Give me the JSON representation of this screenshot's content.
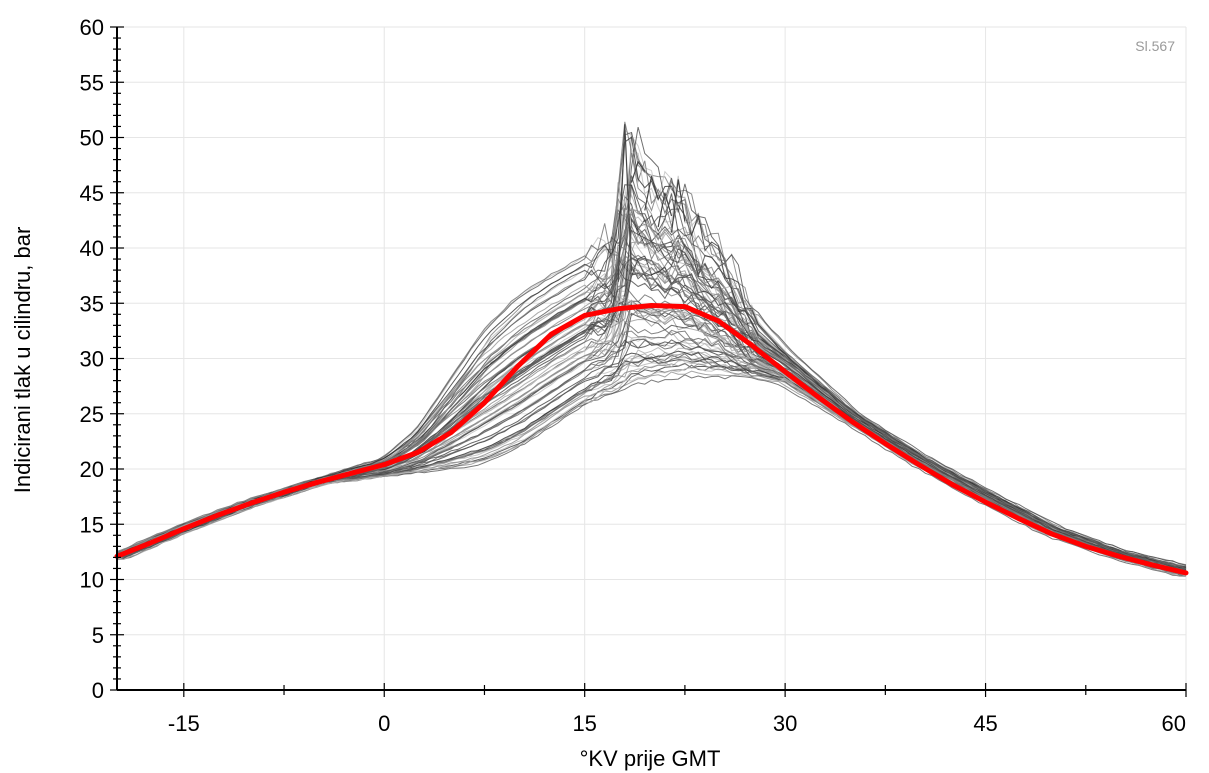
{
  "chart_data": {
    "type": "line",
    "title": "",
    "annotation": "Sl.567",
    "xlabel": "°KV prije GMT",
    "ylabel": "Indicirani tlak u cilindru, bar",
    "xlim": [
      -20,
      60
    ],
    "ylim": [
      0,
      60
    ],
    "x_ticks": [
      -15,
      0,
      15,
      30,
      45,
      60
    ],
    "y_ticks": [
      0,
      5,
      10,
      15,
      20,
      25,
      30,
      35,
      40,
      45,
      50,
      55,
      60
    ],
    "grid": true,
    "legend": "none",
    "colors": {
      "mean_cycle": "#ff0000",
      "individual_cycles": "#707070",
      "grid": "#e6e6e6"
    },
    "series": [
      {
        "role": "mean",
        "x": [
          -20,
          -17.5,
          -15,
          -12.5,
          -10,
          -7.5,
          -5,
          -2.5,
          0,
          2.5,
          5,
          7.5,
          10,
          12.5,
          15,
          17.5,
          20,
          22.5,
          25,
          27.5,
          30,
          32.5,
          35,
          37.5,
          40,
          42.5,
          45,
          47.5,
          50,
          52.5,
          55,
          57.5,
          60
        ],
        "y": [
          12.1,
          13.3,
          14.6,
          15.8,
          16.9,
          17.9,
          18.8,
          19.6,
          20.4,
          21.5,
          23.3,
          26.0,
          29.3,
          32.2,
          33.9,
          34.5,
          34.8,
          34.7,
          33.4,
          31.2,
          28.8,
          26.5,
          24.3,
          22.3,
          20.4,
          18.6,
          17.0,
          15.5,
          14.1,
          13.0,
          12.1,
          11.3,
          10.6
        ]
      },
      {
        "role": "cycle-envelope-upper",
        "x": [
          -20,
          -15,
          -10,
          -5,
          0,
          2.5,
          5,
          7.5,
          10,
          12.5,
          15,
          17.5,
          18,
          19,
          20,
          21,
          22,
          23,
          25,
          27.5,
          30,
          35,
          40,
          45,
          50,
          55,
          60
        ],
        "y": [
          12.3,
          14.9,
          17.2,
          19.1,
          21.0,
          23.5,
          28.0,
          32.5,
          35.5,
          37.5,
          39.2,
          41.0,
          51.2,
          48.0,
          46.5,
          45.0,
          46.0,
          43.0,
          40.0,
          34.0,
          30.6,
          25.0,
          21.2,
          17.9,
          14.8,
          12.6,
          11.2
        ]
      },
      {
        "role": "cycle-envelope-lower",
        "x": [
          -20,
          -15,
          -10,
          -5,
          0,
          2.5,
          5,
          7.5,
          10,
          12.5,
          15,
          17.5,
          20,
          22.5,
          25,
          27.5,
          30,
          35,
          40,
          45,
          50,
          55,
          60
        ],
        "y": [
          11.8,
          14.4,
          16.7,
          18.6,
          19.3,
          19.6,
          19.9,
          20.3,
          21.5,
          23.5,
          25.5,
          26.8,
          27.8,
          28.3,
          28.4,
          28.2,
          27.8,
          24.2,
          20.4,
          17.1,
          14.0,
          11.9,
          10.3
        ]
      }
    ]
  }
}
